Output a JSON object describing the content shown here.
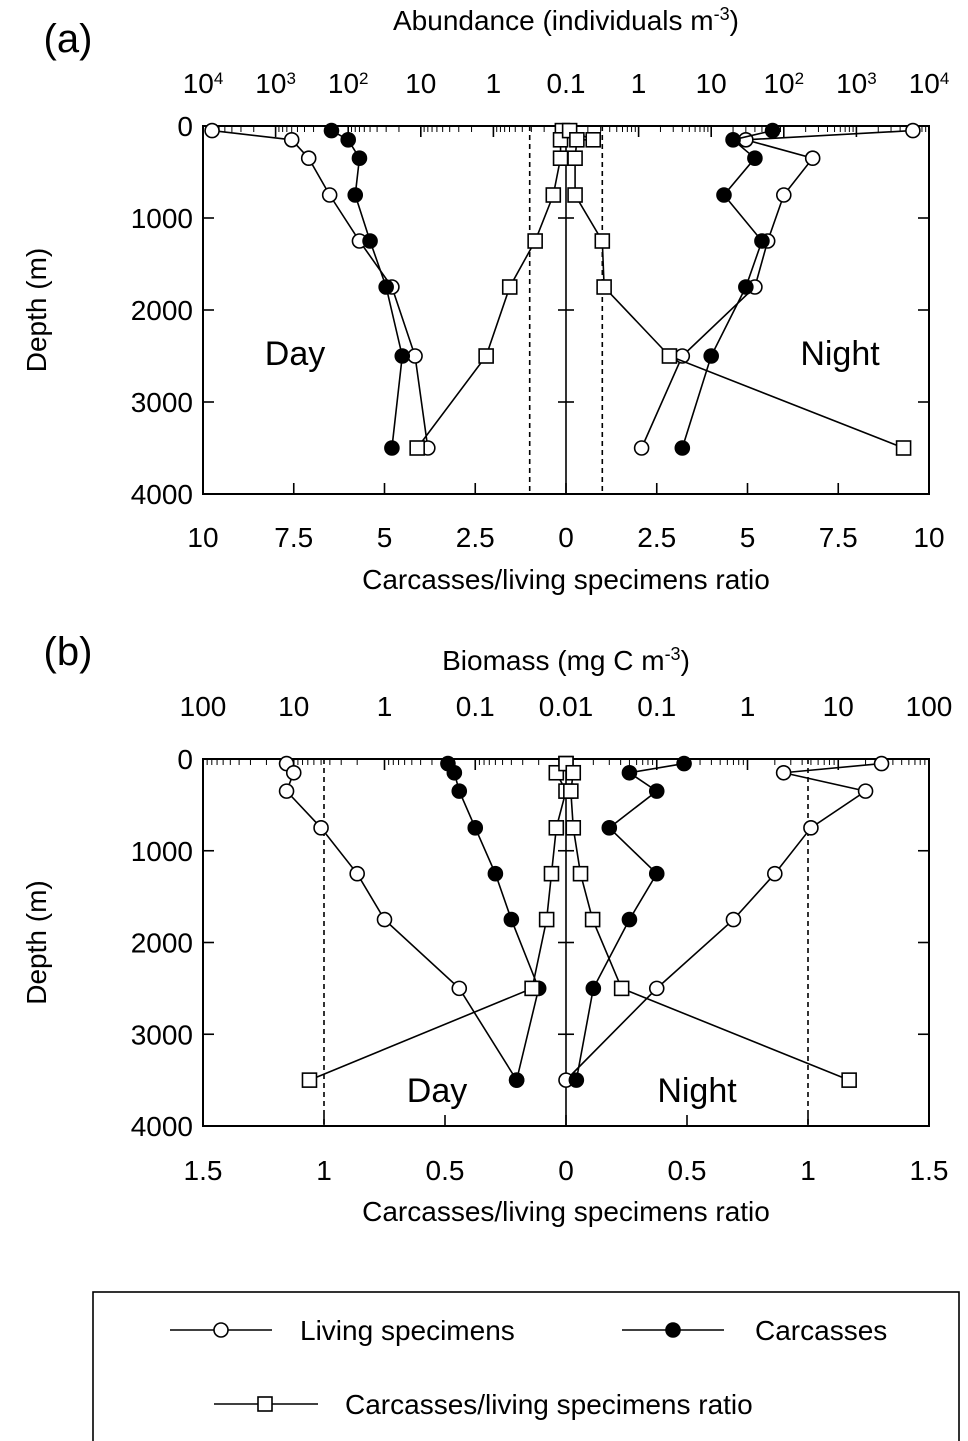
{
  "chart_data": [
    {
      "panel_label": "(a)",
      "type": "line",
      "top_axis": {
        "title": "Abundance (individuals m",
        "title_sup": "-3",
        "title_end": ")",
        "scale": "log, mirrored about 0.1",
        "tick_labels": [
          {
            "base": "10",
            "exp": "4"
          },
          {
            "base": "10",
            "exp": "3"
          },
          {
            "base": "10",
            "exp": "2"
          },
          {
            "base": "10",
            "exp": ""
          },
          {
            "base": "1",
            "exp": ""
          },
          {
            "base": "0.1",
            "exp": ""
          },
          {
            "base": "1",
            "exp": ""
          },
          {
            "base": "10",
            "exp": ""
          },
          {
            "base": "10",
            "exp": "2"
          },
          {
            "base": "10",
            "exp": "3"
          },
          {
            "base": "10",
            "exp": "4"
          }
        ]
      },
      "xlabel": "Carcasses/living specimens ratio",
      "bottom_ticks": [
        "10",
        "7.5",
        "5",
        "2.5",
        "0",
        "2.5",
        "5",
        "7.5",
        "10"
      ],
      "ratio_max": 10,
      "ylabel": "Depth (m)",
      "y_ticks": [
        "0",
        "1000",
        "2000",
        "3000",
        "4000"
      ],
      "ylim": [
        0,
        4000
      ],
      "reference_ratio": 1,
      "annotations": {
        "left": "Day",
        "right": "Night"
      },
      "series": {
        "day": {
          "living": [
            [
              7500,
              50
            ],
            [
              600,
              150
            ],
            [
              350,
              350
            ],
            [
              180,
              750
            ],
            [
              70,
              1250
            ],
            [
              25,
              1750
            ],
            [
              12,
              2500
            ],
            [
              8,
              3500
            ]
          ],
          "carcasses": [
            [
              170,
              50
            ],
            [
              100,
              150
            ],
            [
              70,
              350
            ],
            [
              80,
              750
            ],
            [
              50,
              1250
            ],
            [
              30,
              1750
            ],
            [
              18,
              2500
            ],
            [
              25,
              3500
            ]
          ],
          "ratio": [
            [
              0.1,
              0.1
            ],
            [
              0.15,
              0.4
            ],
            [
              0.15,
              1.0
            ],
            [
              0.15,
              2.0
            ],
            [
              0.2,
              3.5
            ],
            [
              0.6,
              4.3
            ],
            [
              0.75,
              5.3
            ],
            [
              2.25,
              7.6
            ],
            [
              3.9,
              9.9
            ],
            [
              4.15,
              12.3
            ],
            [
              0.9,
              19.1
            ],
            [
              1.55,
              22.8
            ],
            [
              2.3,
              24.8
            ],
            [
              3.05,
              27.1
            ],
            [
              4.3,
              24.9
            ]
          ]
        },
        "night": {
          "living": [
            [
              6000,
              50
            ],
            [
              30,
              150
            ],
            [
              250,
              350
            ],
            [
              100,
              750
            ],
            [
              60,
              1250
            ],
            [
              40,
              1750
            ],
            [
              4,
              2500
            ],
            [
              1.1,
              3500
            ]
          ],
          "carcasses": [
            [
              70,
              50
            ],
            [
              20,
              150
            ],
            [
              40,
              350
            ],
            [
              15,
              750
            ],
            [
              50,
              1250
            ],
            [
              30,
              1750
            ],
            [
              10,
              2500
            ],
            [
              4,
              3500
            ]
          ],
          "ratio": [
            [
              0.1,
              0.1
            ],
            [
              0.15,
              1.5
            ],
            [
              0.15,
              0.3
            ],
            [
              0.25,
              0.35
            ],
            [
              0.75,
              0.4
            ],
            [
              1.25,
              1.05
            ],
            [
              1.75,
              1.1
            ],
            [
              2.5,
              2.8
            ],
            [
              3.5,
              9.3
            ]
          ]
        }
      }
    },
    {
      "panel_label": "(b)",
      "type": "line",
      "top_axis": {
        "title": "Biomass (mg C m",
        "title_sup": "-3",
        "title_end": ")",
        "scale": "log, mirrored about 0.01",
        "tick_labels": [
          {
            "base": "100",
            "exp": ""
          },
          {
            "base": "10",
            "exp": ""
          },
          {
            "base": "1",
            "exp": ""
          },
          {
            "base": "0.1",
            "exp": ""
          },
          {
            "base": "0.01",
            "exp": ""
          },
          {
            "base": "0.1",
            "exp": ""
          },
          {
            "base": "1",
            "exp": ""
          },
          {
            "base": "10",
            "exp": ""
          },
          {
            "base": "100",
            "exp": ""
          }
        ]
      },
      "xlabel": "Carcasses/living specimens ratio",
      "bottom_ticks": [
        "1.5",
        "1",
        "0.5",
        "0",
        "0.5",
        "1",
        "1.5"
      ],
      "ratio_max": 1.5,
      "ylabel": "Depth (m)",
      "y_ticks": [
        "0",
        "1000",
        "2000",
        "3000",
        "4000"
      ],
      "ylim": [
        0,
        4000
      ],
      "reference_ratio": 1,
      "annotations": {
        "left": "Day",
        "right": "Night"
      },
      "series": {
        "day": {
          "living": [
            [
              12,
              50
            ],
            [
              10,
              150
            ],
            [
              12,
              350
            ],
            [
              5,
              750
            ],
            [
              2,
              1250
            ],
            [
              1,
              1750
            ],
            [
              0.15,
              2500
            ],
            [
              0.035,
              3500
            ]
          ],
          "carcasses": [
            [
              0.2,
              50
            ],
            [
              0.17,
              150
            ],
            [
              0.15,
              350
            ],
            [
              0.1,
              750
            ],
            [
              0.06,
              1250
            ],
            [
              0.04,
              1750
            ],
            [
              0.02,
              2500
            ],
            [
              0.035,
              3500
            ]
          ],
          "ratio": [
            [
              0.0,
              50
            ],
            [
              0.04,
              150
            ],
            [
              0.0,
              350
            ],
            [
              0.04,
              750
            ],
            [
              0.06,
              1250
            ],
            [
              0.08,
              1750
            ],
            [
              0.14,
              2500
            ],
            [
              1.06,
              3500
            ]
          ]
        },
        "night": {
          "living": [
            [
              30,
              50
            ],
            [
              2.5,
              150
            ],
            [
              20,
              350
            ],
            [
              5,
              750
            ],
            [
              2,
              1250
            ],
            [
              0.7,
              1750
            ],
            [
              0.1,
              2500
            ],
            [
              0.01,
              3500
            ]
          ],
          "carcasses": [
            [
              0.2,
              50
            ],
            [
              0.05,
              150
            ],
            [
              0.1,
              350
            ],
            [
              0.03,
              750
            ],
            [
              0.1,
              1250
            ],
            [
              0.05,
              1750
            ],
            [
              0.02,
              2500
            ],
            [
              0.013,
              3500
            ]
          ],
          "ratio": [
            [
              0.0,
              50
            ],
            [
              0.03,
              150
            ],
            [
              0.02,
              350
            ],
            [
              0.03,
              750
            ],
            [
              0.06,
              1250
            ],
            [
              0.11,
              1750
            ],
            [
              0.23,
              2500
            ],
            [
              1.17,
              3500
            ]
          ]
        }
      }
    }
  ],
  "legend": {
    "living": "Living specimens",
    "carcasses": "Carcasses",
    "ratio": "Carcasses/living specimens ratio"
  }
}
